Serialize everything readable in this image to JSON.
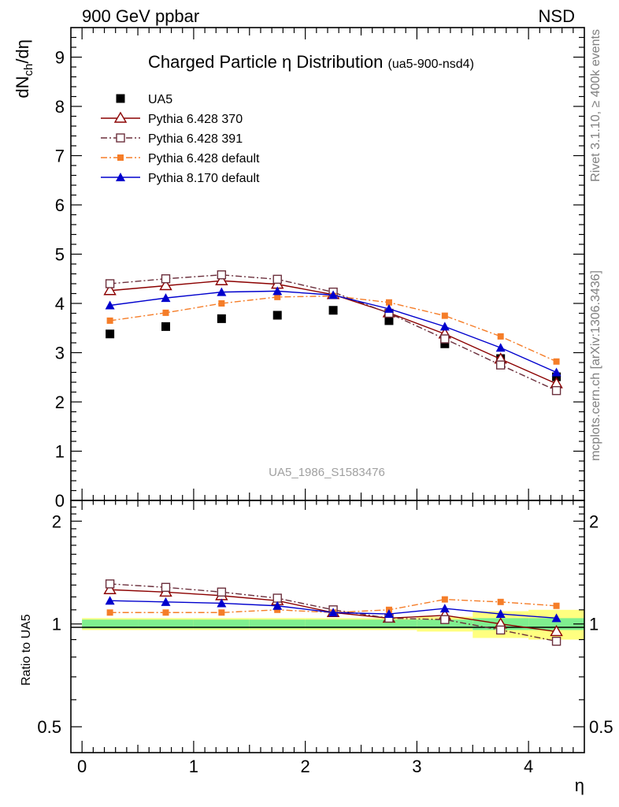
{
  "header": {
    "left": "900 GeV ppbar",
    "right": "NSD"
  },
  "side_labels": {
    "top": "Rivet 3.1.10, ≥ 400k events",
    "bottom": "mcplots.cern.ch [arXiv:1306.3436]"
  },
  "watermark": "UA5_1986_S1583476",
  "chart_data": [
    {
      "type": "scatter",
      "panel": "main",
      "title": "Charged Particle η Distribution",
      "subtitle": "(ua5-900-nsd4)",
      "ylabel": "dN_ch/dη",
      "xlim": [
        -0.1,
        4.5
      ],
      "ylim": [
        0,
        9.6
      ],
      "yticks": [
        0,
        1,
        2,
        3,
        4,
        5,
        6,
        7,
        8,
        9
      ],
      "x": [
        0.25,
        0.75,
        1.25,
        1.75,
        2.25,
        2.75,
        3.25,
        3.75,
        4.25
      ],
      "series": [
        {
          "name": "UA5",
          "color": "#000000",
          "marker": "square",
          "line": "none",
          "values": [
            3.38,
            3.53,
            3.69,
            3.76,
            3.86,
            3.65,
            3.18,
            2.88,
            2.51
          ]
        },
        {
          "name": "Pythia 6.428 370",
          "color": "#8b0000",
          "marker": "triangle-open",
          "line": "solid",
          "values": [
            4.26,
            4.36,
            4.46,
            4.39,
            4.18,
            3.81,
            3.38,
            2.87,
            2.37
          ]
        },
        {
          "name": "Pythia 6.428 391",
          "color": "#6b2f3c",
          "marker": "square-open",
          "line": "dashdot",
          "values": [
            4.4,
            4.5,
            4.58,
            4.49,
            4.23,
            3.8,
            3.28,
            2.75,
            2.23
          ]
        },
        {
          "name": "Pythia 6.428 default",
          "color": "#f57d28",
          "marker": "square-small",
          "line": "dashdot",
          "values": [
            3.65,
            3.81,
            4.0,
            4.13,
            4.15,
            4.02,
            3.75,
            3.33,
            2.82
          ]
        },
        {
          "name": "Pythia 8.170 default",
          "color": "#0000cd",
          "marker": "triangle",
          "line": "solid",
          "values": [
            3.96,
            4.11,
            4.23,
            4.25,
            4.17,
            3.89,
            3.53,
            3.1,
            2.6
          ]
        }
      ]
    },
    {
      "type": "line",
      "panel": "ratio",
      "xlabel": "η",
      "ylabel": "Ratio to UA5",
      "xlim": [
        -0.1,
        4.5
      ],
      "ylim": [
        0.42,
        2.3
      ],
      "yticks": [
        0.5,
        1,
        2
      ],
      "xticks": [
        0,
        1,
        2,
        3,
        4
      ],
      "x": [
        0.25,
        0.75,
        1.25,
        1.75,
        2.25,
        2.75,
        3.25,
        3.75,
        4.25
      ],
      "band_inner": [
        0.03,
        0.03,
        0.03,
        0.03,
        0.03,
        0.03,
        0.03,
        0.04,
        0.04
      ],
      "band_outer": [
        0.04,
        0.04,
        0.04,
        0.04,
        0.04,
        0.04,
        0.05,
        0.09,
        0.1
      ],
      "series": [
        {
          "name": "Pythia 6.428 370",
          "color": "#8b0000",
          "marker": "triangle-open",
          "line": "solid",
          "values": [
            1.26,
            1.24,
            1.21,
            1.17,
            1.08,
            1.04,
            1.06,
            1.0,
            0.95
          ]
        },
        {
          "name": "Pythia 6.428 391",
          "color": "#6b2f3c",
          "marker": "square-open",
          "line": "dashdot",
          "values": [
            1.31,
            1.28,
            1.24,
            1.19,
            1.1,
            1.04,
            1.03,
            0.96,
            0.89
          ]
        },
        {
          "name": "Pythia 6.428 default",
          "color": "#f57d28",
          "marker": "square-small",
          "line": "dashdot",
          "values": [
            1.08,
            1.08,
            1.08,
            1.1,
            1.08,
            1.1,
            1.18,
            1.16,
            1.13
          ]
        },
        {
          "name": "Pythia 8.170 default",
          "color": "#0000cd",
          "marker": "triangle",
          "line": "solid",
          "values": [
            1.17,
            1.16,
            1.15,
            1.13,
            1.08,
            1.07,
            1.11,
            1.07,
            1.04
          ]
        }
      ]
    }
  ]
}
